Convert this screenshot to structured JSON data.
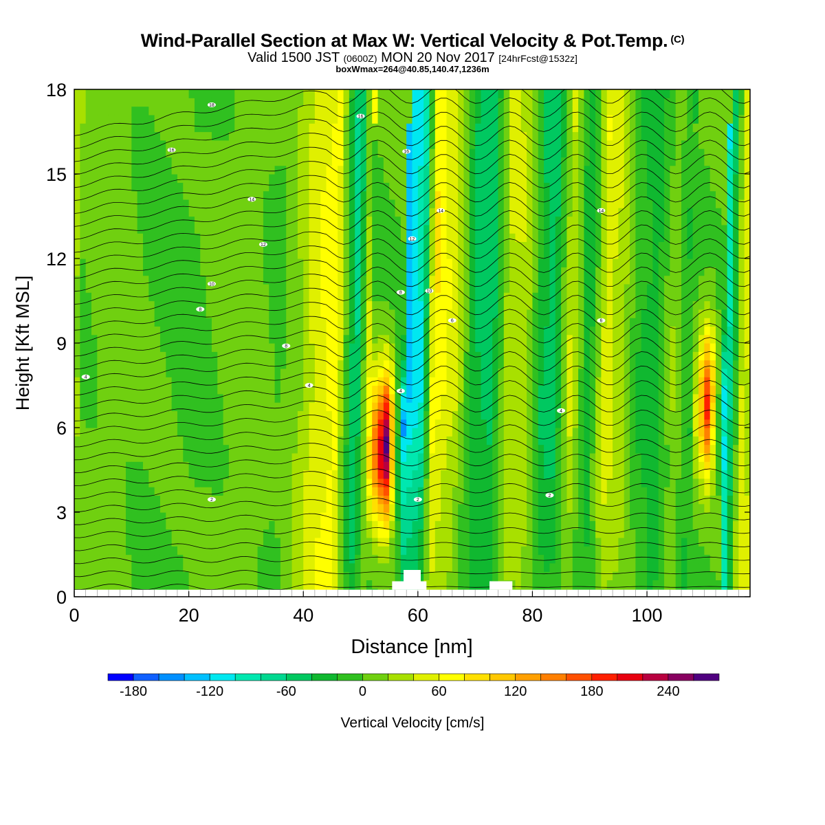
{
  "header": {
    "title": "Wind-Parallel Section at Max W: Vertical Velocity & Pot.Temp.",
    "title_tag": "(C)",
    "valid_prefix": "Valid 1500 JST",
    "valid_utc": "(0600Z)",
    "valid_date": "MON 20 Nov 2017",
    "forecast_tag": "[24hrFcst@1532z]",
    "boxwmax": "boxWmax=264@40.85,140.47,1236m"
  },
  "chart_data": {
    "type": "heatmap",
    "xlabel": "Distance [nm]",
    "ylabel": "Height [Kft MSL]",
    "xlim": [
      0,
      118
    ],
    "ylim": [
      0,
      18
    ],
    "x_ticks": [
      0,
      20,
      40,
      60,
      80,
      100
    ],
    "y_ticks": [
      0,
      3,
      6,
      9,
      12,
      15,
      18
    ],
    "grid": false,
    "colorbar": {
      "label": "Vertical Velocity [cm/s]",
      "ticks": [
        -180,
        -120,
        -60,
        0,
        60,
        120,
        180,
        240
      ],
      "levels": [
        -200,
        -180,
        -160,
        -140,
        -120,
        -100,
        -80,
        -60,
        -40,
        -20,
        0,
        20,
        40,
        60,
        80,
        100,
        120,
        140,
        160,
        180,
        200,
        220,
        240,
        260,
        280
      ],
      "colors": [
        "#0000ff",
        "#1060ff",
        "#0090ff",
        "#00c0ff",
        "#00e8f0",
        "#00e8b0",
        "#00d890",
        "#00c860",
        "#10b830",
        "#30c020",
        "#70d010",
        "#a8e000",
        "#e0f000",
        "#ffff00",
        "#ffe000",
        "#ffc800",
        "#ffa000",
        "#ff8000",
        "#ff5000",
        "#ff2000",
        "#e80010",
        "#b80040",
        "#880060",
        "#500080"
      ]
    },
    "vertical_velocity_columns": [
      {
        "x": 0,
        "w": 0
      },
      {
        "x": 6,
        "w": 12
      },
      {
        "x": 12,
        "w": 0
      },
      {
        "x": 20,
        "w": -5
      },
      {
        "x": 25,
        "w": 5
      },
      {
        "x": 30,
        "w": 15
      },
      {
        "x": 35,
        "w": -5
      },
      {
        "x": 39,
        "w": 30
      },
      {
        "x": 42,
        "w": 55
      },
      {
        "x": 45,
        "w": 70
      },
      {
        "x": 47,
        "w": -20
      },
      {
        "x": 48.5,
        "w": -75
      },
      {
        "x": 51,
        "w": 65
      },
      {
        "x": 54,
        "w": 200
      },
      {
        "x": 57,
        "w": -130
      },
      {
        "x": 60,
        "w": -95
      },
      {
        "x": 62,
        "w": 80
      },
      {
        "x": 66,
        "w": 40
      },
      {
        "x": 69,
        "w": -40
      },
      {
        "x": 72,
        "w": -55
      },
      {
        "x": 75,
        "w": 40
      },
      {
        "x": 78,
        "w": 35
      },
      {
        "x": 81,
        "w": -40
      },
      {
        "x": 83,
        "w": -50
      },
      {
        "x": 86,
        "w": 45
      },
      {
        "x": 89,
        "w": -40
      },
      {
        "x": 92,
        "w": 55
      },
      {
        "x": 95,
        "w": 30
      },
      {
        "x": 98,
        "w": -20
      },
      {
        "x": 101,
        "w": -30
      },
      {
        "x": 104,
        "w": 20
      },
      {
        "x": 107,
        "w": -25
      },
      {
        "x": 110,
        "w": 180
      },
      {
        "x": 113,
        "w": -110
      },
      {
        "x": 116,
        "w": 55
      },
      {
        "x": 118,
        "w": 30
      }
    ],
    "potential_temperature_contours": {
      "units": "C",
      "labels": [
        {
          "x": 24,
          "y": 17.45,
          "text": "18"
        },
        {
          "x": 50,
          "y": 17.05,
          "text": "16"
        },
        {
          "x": 17,
          "y": 15.85,
          "text": "16"
        },
        {
          "x": 58,
          "y": 15.8,
          "text": "16"
        },
        {
          "x": 31,
          "y": 14.1,
          "text": "14"
        },
        {
          "x": 64,
          "y": 13.7,
          "text": "14"
        },
        {
          "x": 92,
          "y": 13.7,
          "text": "14"
        },
        {
          "x": 33,
          "y": 12.5,
          "text": "12"
        },
        {
          "x": 59,
          "y": 12.7,
          "text": "12"
        },
        {
          "x": 24,
          "y": 11.1,
          "text": "10"
        },
        {
          "x": 62,
          "y": 10.85,
          "text": "10"
        },
        {
          "x": 22,
          "y": 10.2,
          "text": "8"
        },
        {
          "x": 57,
          "y": 10.8,
          "text": "8"
        },
        {
          "x": 66,
          "y": 9.8,
          "text": "6"
        },
        {
          "x": 92,
          "y": 9.8,
          "text": "6"
        },
        {
          "x": 37,
          "y": 8.9,
          "text": "8"
        },
        {
          "x": 2,
          "y": 7.8,
          "text": "4"
        },
        {
          "x": 41,
          "y": 7.5,
          "text": "4"
        },
        {
          "x": 57,
          "y": 7.3,
          "text": "4"
        },
        {
          "x": 85,
          "y": 6.6,
          "text": "4"
        },
        {
          "x": 24,
          "y": 3.45,
          "text": "2"
        },
        {
          "x": 60,
          "y": 3.45,
          "text": "2"
        },
        {
          "x": 83,
          "y": 3.6,
          "text": "2"
        }
      ]
    },
    "terrain": [
      {
        "x": 55.5,
        "height": 0.55
      },
      {
        "x": 57.5,
        "height": 0.95
      },
      {
        "x": 59.5,
        "height": 0.95
      },
      {
        "x": 60.5,
        "height": 0.55
      },
      {
        "x": 73,
        "height": 0.55
      },
      {
        "x": 76,
        "height": 0.55
      }
    ]
  }
}
